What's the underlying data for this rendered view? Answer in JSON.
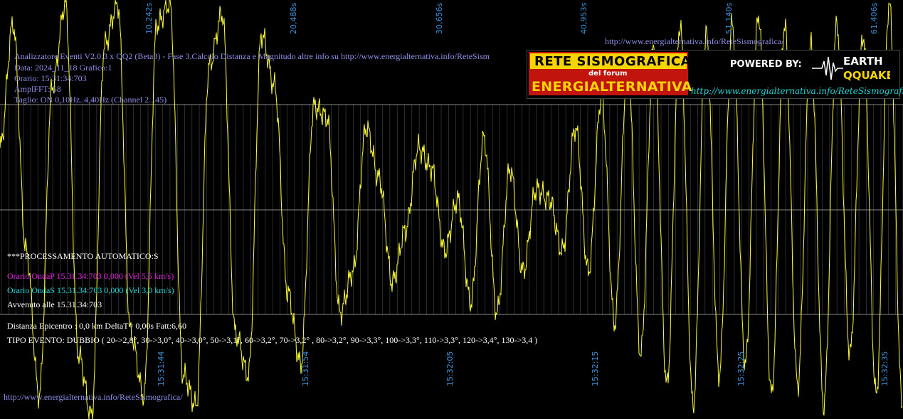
{
  "header": {
    "line1": "Analizzatore Eventi V2.0.3 x QQ2 (Beta3) - Fase 3.Calcolo Distanza e Magnitudo altre info su http://www.energialternativa.info/ReteSism",
    "line2": "Data: 2024_11_18 Grafico:1",
    "line3": "Orario: 15:31:34:703",
    "line4": "AmplFFT: 58",
    "line5": "Taglio: ON 0,10Hz..4,40Hz      (Channel 2...45)"
  },
  "top_url": "http://www.energialternativa.info/ReteSismografica/",
  "bottom_url": "http://www.energialternativa.info/ReteSismografica/",
  "banner": {
    "title1": "RETE SISMOGRAFICA",
    "title2": "del forum",
    "title3": "ENERGIALTERNATIVA",
    "powered": "POWERED BY:",
    "logo_top": "EARTH",
    "logo_bottom": "QQUAKE",
    "url": "http://www.energialternativa.info/ReteSismografica"
  },
  "processing": {
    "title": "***PROCESSAMENTO AUTOMATICO:S",
    "onda_p": "Orario OndaP 15.31.34:703  0,000 (Vel 5,5 km/s)",
    "onda_s": "Orario OndaS 15.31.34:703  0,000 (Vel 3,0 km/s)",
    "avvenuto": "Avvenuto alle 15.31.34:703",
    "distanza": "Distanza Epicentro : 0,0 km DeltaT= 0,00s  Fatt:6,60",
    "tipo": "TIPO EVENTO: DUBBIO ( 20->2,8°, 30->3,0°, 40->3,0°, 50->3,1°, 60->3,2°, 70->3,2° , 80->3,2°, 90->3,3°, 100->3,3°, 110->3,3°, 120->3,4°, 130->3,4 )"
  },
  "colors": {
    "background": "#000000",
    "trace": "#ffff33",
    "grid": "#7a7a7a",
    "tick_label": "#3a8fd8",
    "info_text": "#8f8fe8",
    "onda_p": "#e020e0",
    "onda_s": "#20d8d8"
  },
  "chart_data": {
    "type": "line",
    "title": "",
    "xlabel": "",
    "ylabel": "",
    "top_ticks": [
      "10,242s",
      "20,488s",
      "30,656s",
      "40,953s",
      "51,140s",
      "61,406s"
    ],
    "bottom_ticks": [
      "15:31:44",
      "15:31:54",
      "15:32:05",
      "15:32:15",
      "15:32:25",
      "15:32:35"
    ],
    "series": [
      {
        "values": [
          0.3,
          0.9,
          -0.2,
          -0.9,
          0.6,
          1.0,
          -0.7,
          -1.0,
          0.8,
          1.0,
          -0.6,
          -0.9,
          0.9,
          1.0,
          -0.8,
          -0.95,
          0.7,
          0.95,
          -0.6,
          -0.8,
          0.85,
          0.6,
          -0.4,
          -0.75,
          0.5,
          0.45,
          -0.5,
          -0.3,
          0.4,
          0.15,
          -0.35,
          -0.1,
          0.3,
          0.2,
          -0.2,
          0.05,
          -0.45,
          0.35,
          -0.5,
          0.2,
          -0.3,
          0.1,
          0.05,
          -0.2,
          0.4,
          -0.3,
          0.55,
          -0.55,
          0.7,
          -0.7,
          0.8,
          -0.85,
          0.9,
          -0.95,
          0.85,
          -0.8,
          0.9,
          -0.75,
          0.95,
          -0.9,
          0.9,
          -0.85,
          0.8,
          -0.95,
          0.9,
          -0.7,
          0.85,
          -0.9,
          1.0,
          -0.95
        ]
      }
    ]
  }
}
